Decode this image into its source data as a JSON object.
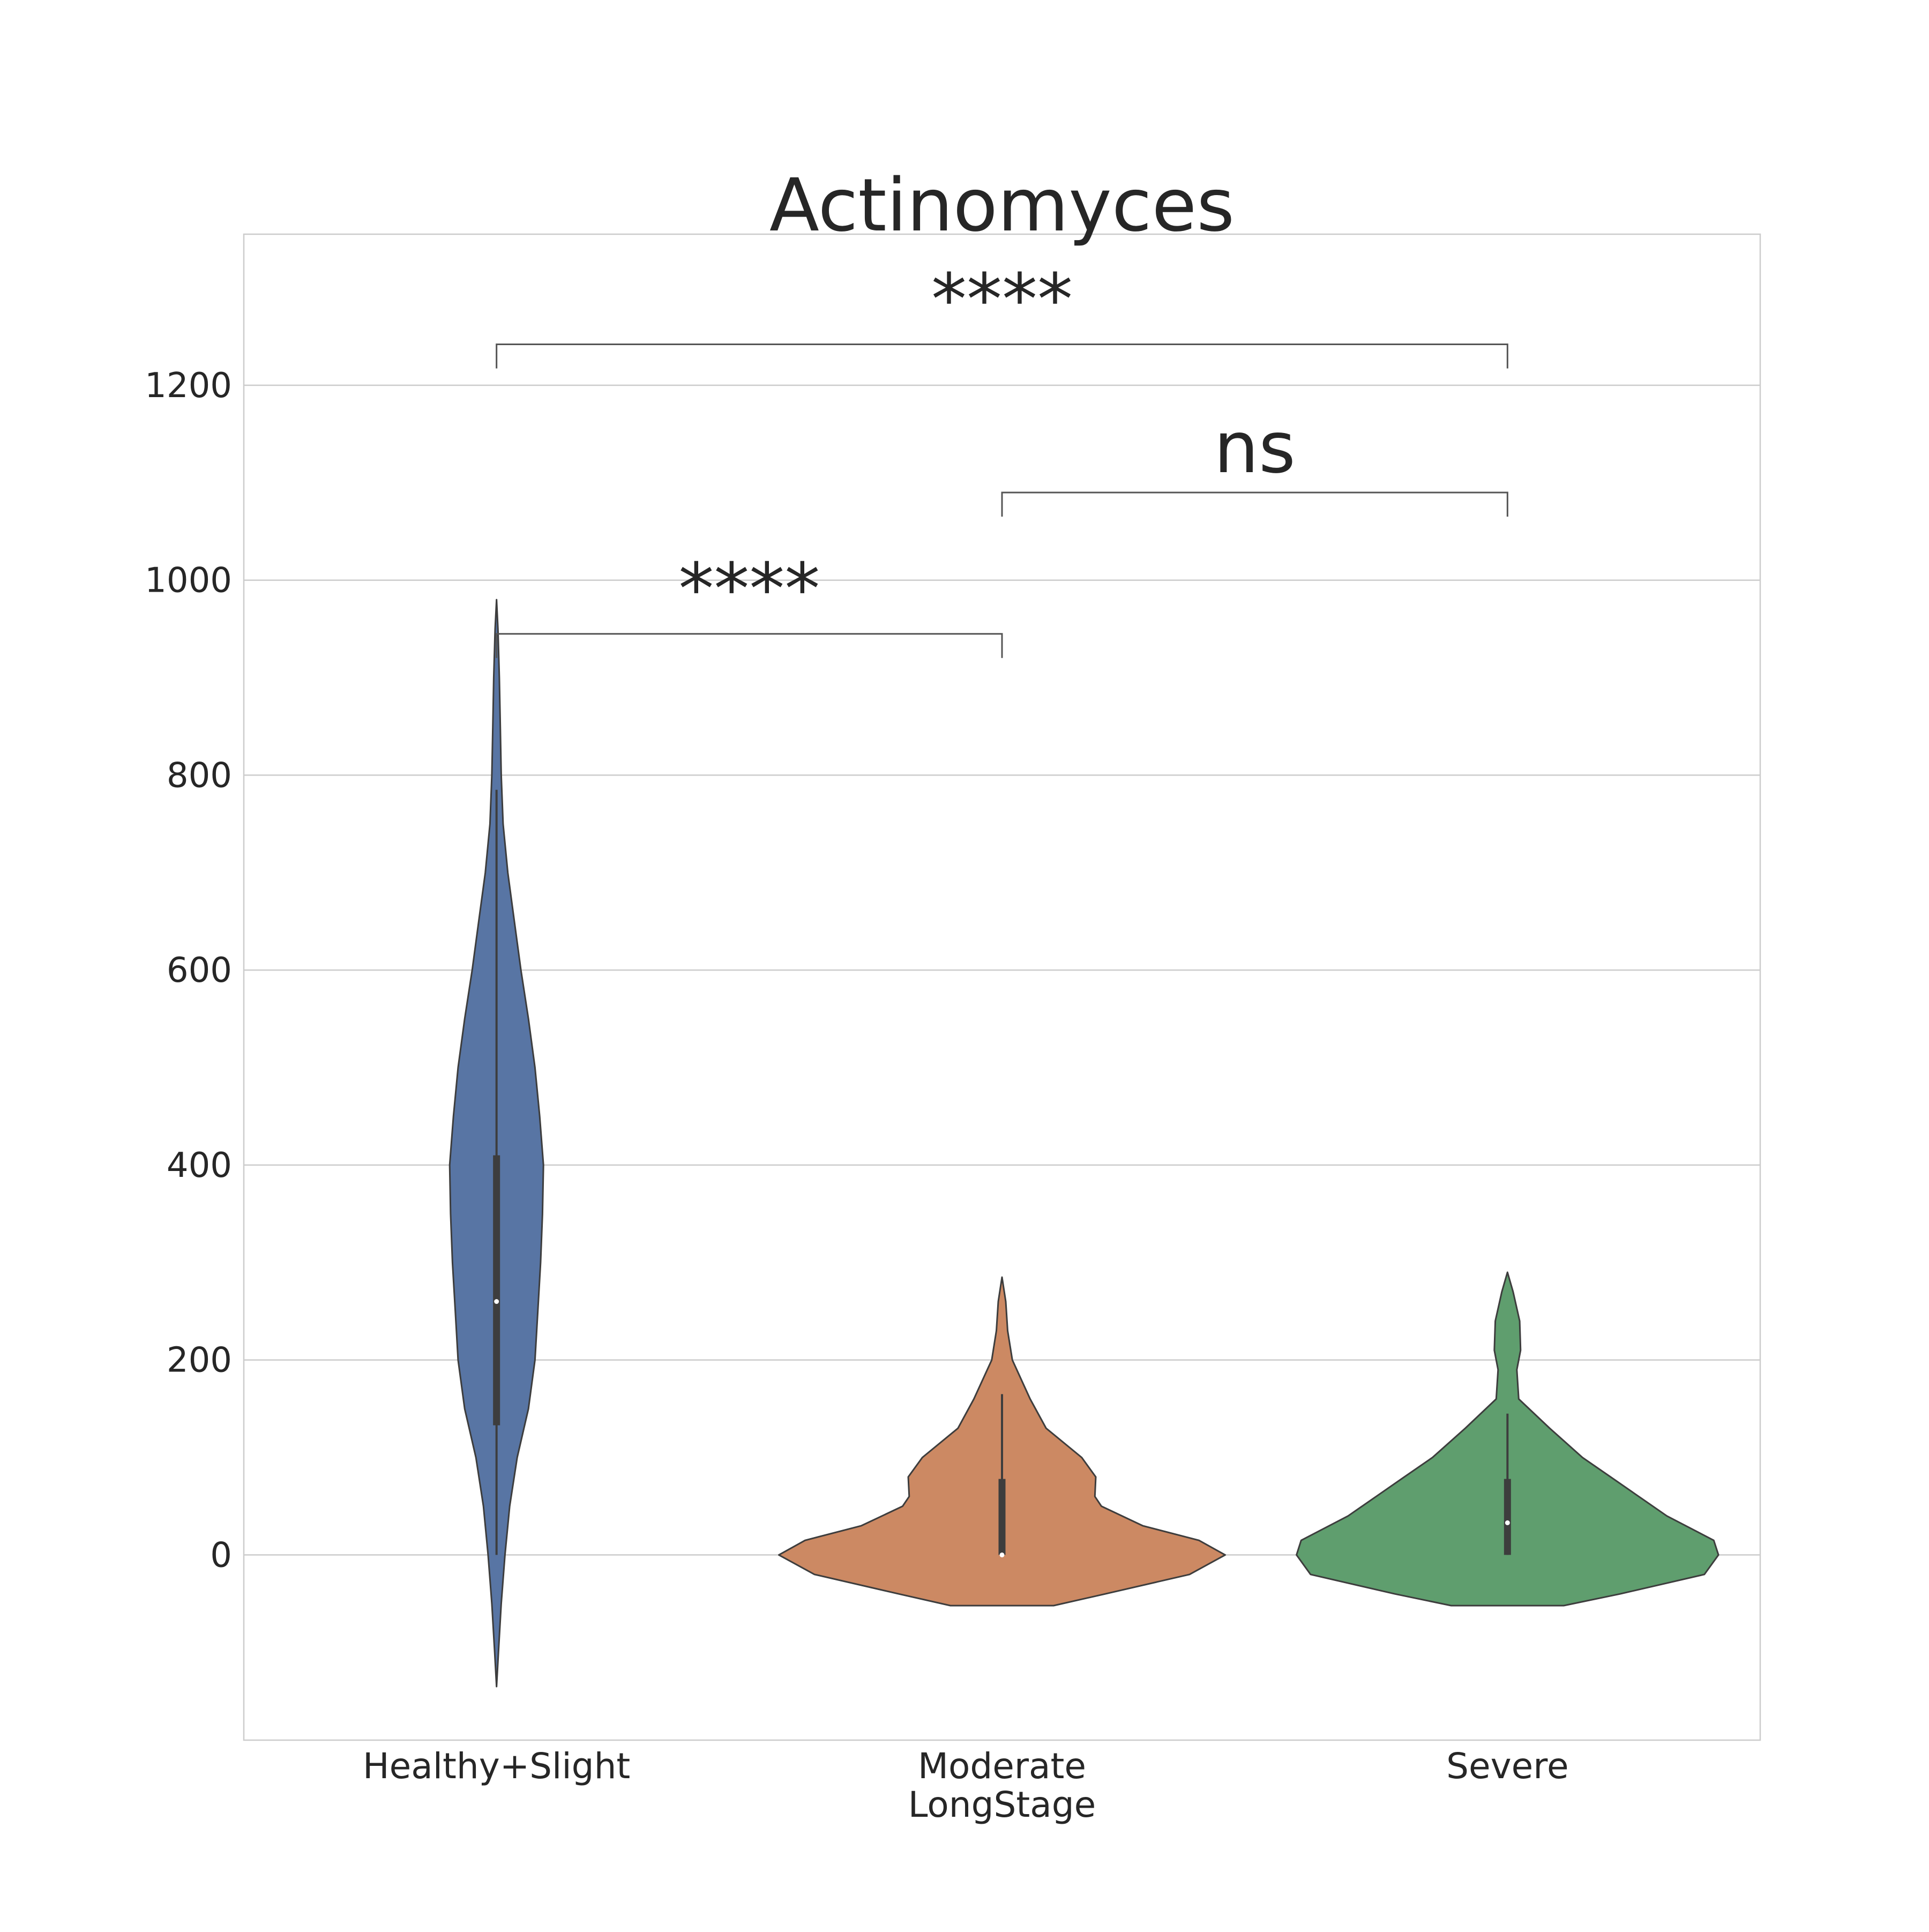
{
  "chart_data": {
    "type": "violin",
    "title": "Actinomyces",
    "xlabel": "LongStage",
    "ylabel": "",
    "categories": [
      "Healthy+Slight",
      "Moderate",
      "Severe"
    ],
    "ylim": [
      -190,
      1355
    ],
    "yticks": [
      0,
      200,
      400,
      600,
      800,
      1000,
      1200
    ],
    "grid": true,
    "legend": "none",
    "series": [
      {
        "category": "Healthy+Slight",
        "color": "#5875a4",
        "density_profile": [
          [
            -135,
            0
          ],
          [
            -100,
            2
          ],
          [
            -50,
            5
          ],
          [
            0,
            9
          ],
          [
            50,
            14
          ],
          [
            100,
            22
          ],
          [
            150,
            34
          ],
          [
            200,
            41
          ],
          [
            250,
            44
          ],
          [
            300,
            47
          ],
          [
            350,
            49
          ],
          [
            400,
            50
          ],
          [
            450,
            46
          ],
          [
            500,
            41
          ],
          [
            550,
            34
          ],
          [
            600,
            26
          ],
          [
            650,
            19
          ],
          [
            700,
            12
          ],
          [
            750,
            7
          ],
          [
            800,
            5
          ],
          [
            850,
            4
          ],
          [
            900,
            3
          ],
          [
            950,
            1.5
          ],
          [
            980,
            0
          ]
        ],
        "box": {
          "min": 0,
          "q1": 133,
          "median": 260,
          "q3": 410,
          "max": 785
        }
      },
      {
        "category": "Moderate",
        "color": "#cc8963",
        "density_profile": [
          [
            -52,
            55
          ],
          [
            -40,
            110
          ],
          [
            -20,
            200
          ],
          [
            0,
            238
          ],
          [
            15,
            210
          ],
          [
            30,
            150
          ],
          [
            50,
            106
          ],
          [
            60,
            99
          ],
          [
            80,
            100
          ],
          [
            100,
            85
          ],
          [
            130,
            47
          ],
          [
            160,
            30
          ],
          [
            200,
            11
          ],
          [
            230,
            6
          ],
          [
            260,
            4
          ],
          [
            285,
            0
          ]
        ],
        "box": {
          "min": 0,
          "q1": 0,
          "median": 0,
          "q3": 78,
          "max": 165
        }
      },
      {
        "category": "Severe",
        "color": "#5f9e6e",
        "density_profile": [
          [
            -52,
            60
          ],
          [
            -40,
            120
          ],
          [
            -20,
            210
          ],
          [
            0,
            225
          ],
          [
            15,
            220
          ],
          [
            40,
            170
          ],
          [
            60,
            140
          ],
          [
            80,
            110
          ],
          [
            100,
            80
          ],
          [
            130,
            45
          ],
          [
            160,
            12
          ],
          [
            190,
            10
          ],
          [
            210,
            14
          ],
          [
            240,
            13
          ],
          [
            270,
            6
          ],
          [
            290,
            0
          ]
        ],
        "box": {
          "min": 0,
          "q1": 0,
          "median": 33,
          "q3": 78,
          "max": 145
        }
      }
    ],
    "annotations": [
      {
        "from": "Healthy+Slight",
        "to": "Moderate",
        "label": "****",
        "y": 945
      },
      {
        "from": "Moderate",
        "to": "Severe",
        "label": "ns",
        "y": 1090
      },
      {
        "from": "Healthy+Slight",
        "to": "Severe",
        "label": "****",
        "y": 1242
      }
    ]
  }
}
